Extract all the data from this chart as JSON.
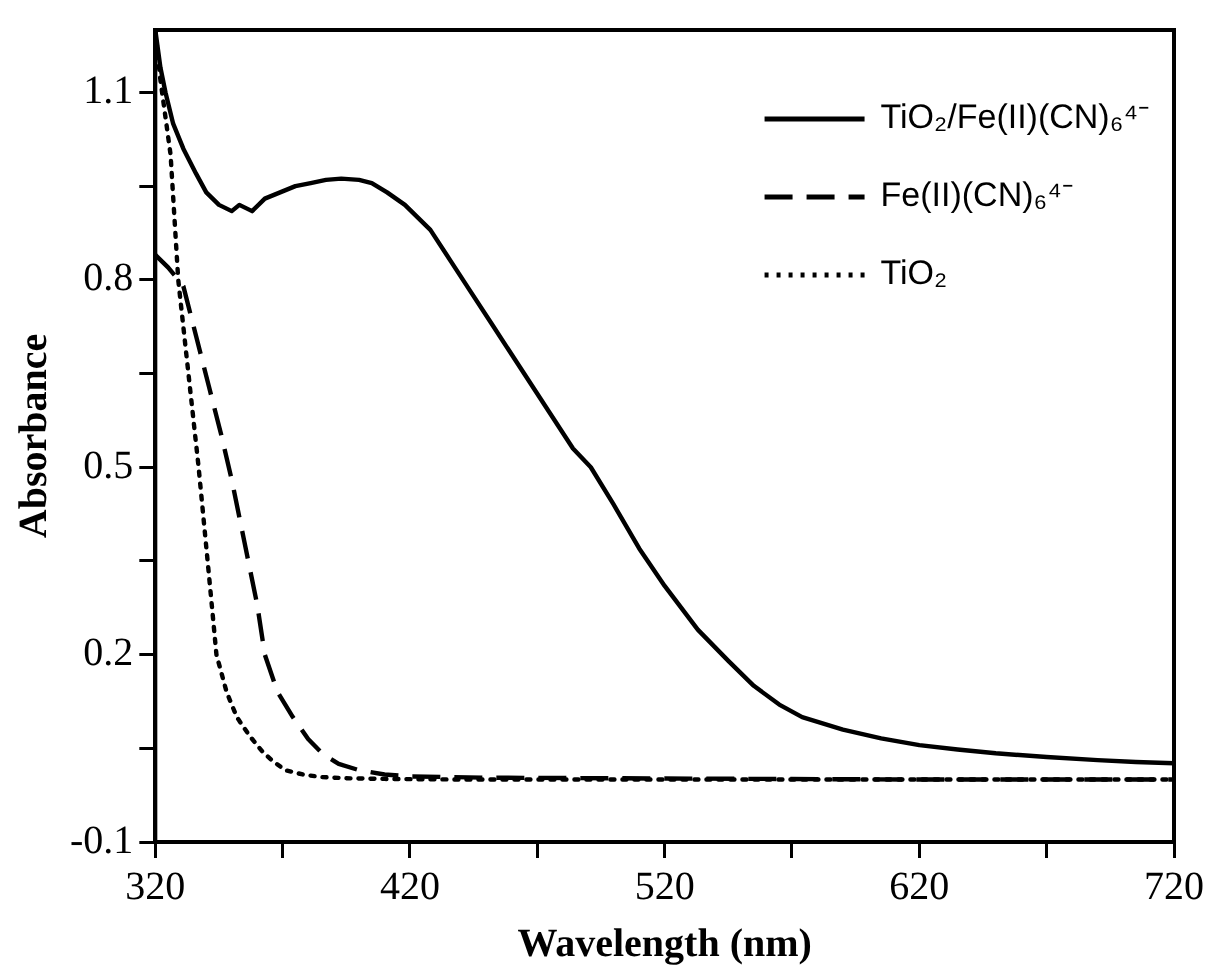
{
  "chart_data": {
    "type": "line",
    "xlabel": "Wavelength (nm)",
    "ylabel": "Absorbance",
    "xlim": [
      320,
      720
    ],
    "ylim": [
      -0.1,
      1.2
    ],
    "xticks": [
      320,
      {
        "value": 370,
        "label": null
      },
      420,
      {
        "value": 470,
        "label": null
      },
      520,
      {
        "value": 570,
        "label": null
      },
      620,
      {
        "value": 670,
        "label": null
      },
      720
    ],
    "yticks": [
      -0.1,
      {
        "value": 0.05,
        "label": null
      },
      0.2,
      {
        "value": 0.35,
        "label": null
      },
      0.5,
      {
        "value": 0.65,
        "label": null
      },
      0.8,
      {
        "value": 0.95,
        "label": null
      },
      1.1
    ],
    "legend": "top right",
    "grid": false,
    "marker": "none",
    "series": [
      {
        "name": "TiO₂/Fe(II)(CN)₆⁴⁻",
        "color": "#000000",
        "line_style": "solid",
        "x": [
          320,
          322,
          324,
          327,
          331,
          336,
          340,
          345,
          350,
          353,
          358,
          363,
          369,
          375,
          381,
          387,
          393,
          400,
          405,
          411,
          418,
          423,
          428,
          436,
          444,
          452,
          460,
          468,
          476,
          484,
          491,
          500,
          510,
          520,
          533,
          545,
          555,
          565,
          574,
          590,
          605,
          620,
          635,
          650,
          670,
          690,
          705,
          720
        ],
        "values": [
          1.2,
          1.14,
          1.1,
          1.05,
          1.01,
          0.97,
          0.94,
          0.92,
          0.91,
          0.92,
          0.91,
          0.93,
          0.94,
          0.95,
          0.955,
          0.96,
          0.962,
          0.96,
          0.955,
          0.94,
          0.92,
          0.9,
          0.88,
          0.83,
          0.78,
          0.73,
          0.68,
          0.63,
          0.58,
          0.53,
          0.5,
          0.44,
          0.37,
          0.31,
          0.24,
          0.19,
          0.15,
          0.12,
          0.1,
          0.08,
          0.066,
          0.055,
          0.048,
          0.042,
          0.036,
          0.031,
          0.028,
          0.026
        ]
      },
      {
        "name": "Fe(II)(CN)₆⁴⁻",
        "color": "#000000",
        "line_style": "dashed",
        "x": [
          320,
          325,
          331,
          336,
          341,
          346,
          350,
          355,
          360,
          363,
          368,
          374,
          380,
          386,
          392,
          400,
          410,
          420,
          450,
          500,
          560,
          620,
          680,
          720
        ],
        "values": [
          0.84,
          0.82,
          0.79,
          0.71,
          0.63,
          0.55,
          0.48,
          0.38,
          0.28,
          0.2,
          0.14,
          0.1,
          0.065,
          0.04,
          0.025,
          0.015,
          0.008,
          0.005,
          0.003,
          0.002,
          0.001,
          0.0,
          0.0,
          0.0
        ]
      },
      {
        "name": "TiO₂",
        "color": "#000000",
        "line_style": "dotted",
        "x": [
          320,
          322,
          324,
          326,
          329,
          333,
          337,
          341,
          344,
          348,
          352,
          357,
          362,
          366,
          371,
          378,
          385,
          395,
          410,
          440,
          500,
          600,
          720
        ],
        "values": [
          1.2,
          1.12,
          1.06,
          1.0,
          0.8,
          0.65,
          0.5,
          0.33,
          0.2,
          0.14,
          0.1,
          0.07,
          0.045,
          0.03,
          0.015,
          0.008,
          0.004,
          0.002,
          0.001,
          0.0,
          0.0,
          0.0,
          0.0
        ]
      }
    ]
  }
}
